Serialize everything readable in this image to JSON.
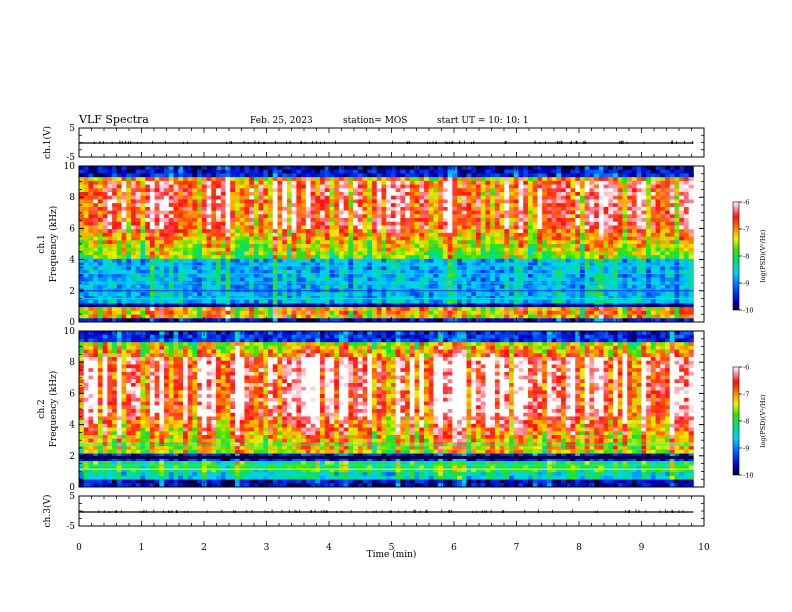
{
  "header": {
    "title": "VLF Spectra",
    "date": "Feb. 25, 2023",
    "station": "station= MOS",
    "start": "start  UT =   10: 10: 1"
  },
  "chart_data": [
    {
      "type": "line",
      "panel": "ch1-waveform",
      "ylabel": "ch.1(V)",
      "ylim": [
        -5,
        5
      ],
      "yticks": [
        "5",
        "-5"
      ],
      "xlim": [
        0,
        10
      ],
      "series": [
        {
          "x": [
            0,
            9.83
          ],
          "y": [
            0,
            0
          ]
        }
      ]
    },
    {
      "type": "heatmap",
      "panel": "ch1-spectrogram",
      "ylabel": "ch.1\nFrequency (kHz)",
      "ylim": [
        0,
        10
      ],
      "yticks": [
        "0",
        "2",
        "4",
        "6",
        "8",
        "10"
      ],
      "xlim": [
        0,
        10
      ],
      "data_end": 9.83,
      "colorbar": {
        "label": "log(PSD)(V²/Hz)",
        "range": [
          -10,
          -6
        ],
        "ticks": [
          "-6",
          "-7",
          "-8",
          "-9",
          "-10"
        ]
      }
    },
    {
      "type": "heatmap",
      "panel": "ch2-spectrogram",
      "ylabel": "ch.2\nFrequency (kHz)",
      "ylim": [
        0,
        10
      ],
      "yticks": [
        "0",
        "2",
        "4",
        "6",
        "8",
        "10"
      ],
      "xlim": [
        0,
        10
      ],
      "data_end": 9.83,
      "colorbar": {
        "label": "log(PSD)(V²/Hz)",
        "range": [
          -10,
          -6
        ],
        "ticks": [
          "-6",
          "-7",
          "-8",
          "-9",
          "-10"
        ]
      }
    },
    {
      "type": "line",
      "panel": "ch3-waveform",
      "ylabel": "ch.3(V)",
      "ylim": [
        -5,
        5
      ],
      "yticks": [
        "5",
        "-5"
      ],
      "xlim": [
        0,
        10
      ],
      "xlabel": "Time  (min)",
      "xticks": [
        "0",
        "1",
        "2",
        "3",
        "4",
        "5",
        "6",
        "7",
        "8",
        "9",
        "10"
      ],
      "series": [
        {
          "x": [
            0,
            9.83
          ],
          "y": [
            0,
            0
          ]
        }
      ]
    }
  ]
}
